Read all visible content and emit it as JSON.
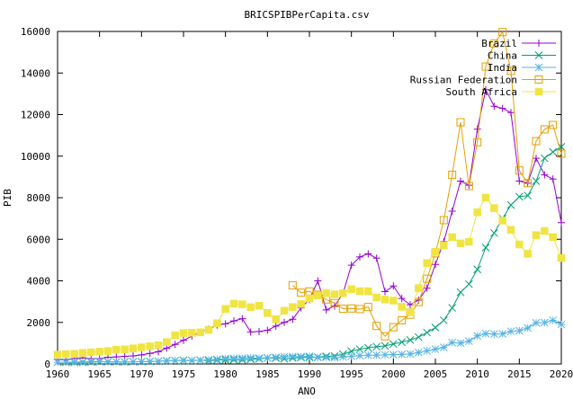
{
  "chart_data": {
    "type": "line",
    "title": "BRICSPIBPerCapita.csv",
    "xlabel": "ANO",
    "ylabel": "PIB",
    "xlim": [
      1960,
      2020
    ],
    "ylim": [
      0,
      16000
    ],
    "xticks": [
      1960,
      1965,
      1970,
      1975,
      1980,
      1985,
      1990,
      1995,
      2000,
      2005,
      2010,
      2015,
      2020
    ],
    "yticks": [
      0,
      2000,
      4000,
      6000,
      8000,
      10000,
      12000,
      14000,
      16000
    ],
    "grid": false,
    "legend_position": "top-right",
    "x": [
      1960,
      1961,
      1962,
      1963,
      1964,
      1965,
      1966,
      1967,
      1968,
      1969,
      1970,
      1971,
      1972,
      1973,
      1974,
      1975,
      1976,
      1977,
      1978,
      1979,
      1980,
      1981,
      1982,
      1983,
      1984,
      1985,
      1986,
      1987,
      1988,
      1989,
      1990,
      1991,
      1992,
      1993,
      1994,
      1995,
      1996,
      1997,
      1998,
      1999,
      2000,
      2001,
      2002,
      2003,
      2004,
      2005,
      2006,
      2007,
      2008,
      2009,
      2010,
      2011,
      2012,
      2013,
      2014,
      2015,
      2016,
      2017,
      2018,
      2019,
      2020
    ],
    "series": [
      {
        "name": "Brazil",
        "color": "#9400d3",
        "marker": "plus",
        "values": [
          210,
          205,
          260,
          290,
          260,
          260,
          320,
          340,
          370,
          390,
          440,
          510,
          590,
          760,
          940,
          1140,
          1340,
          1530,
          1670,
          1870,
          1930,
          2070,
          2180,
          1540,
          1560,
          1620,
          1820,
          2000,
          2150,
          2700,
          3100,
          4000,
          2600,
          2790,
          3400,
          4750,
          5150,
          5300,
          5090,
          3480,
          3750,
          3150,
          2850,
          3070,
          3650,
          4790,
          5880,
          7350,
          8800,
          8600,
          11300,
          13200,
          12400,
          12300,
          12100,
          8800,
          8700,
          9900,
          9100,
          8900,
          6800
        ]
      },
      {
        "name": "China",
        "color": "#009e73",
        "marker": "cross",
        "values": [
          90,
          75,
          70,
          75,
          85,
          100,
          105,
          95,
          90,
          100,
          110,
          120,
          130,
          155,
          160,
          180,
          165,
          185,
          155,
          185,
          195,
          200,
          200,
          225,
          250,
          290,
          280,
          250,
          285,
          310,
          320,
          330,
          370,
          380,
          470,
          610,
          710,
          780,
          830,
          870,
          960,
          1050,
          1150,
          1290,
          1510,
          1750,
          2100,
          2700,
          3450,
          3840,
          4550,
          5600,
          6300,
          7000,
          7650,
          8050,
          8100,
          8800,
          9900,
          10200,
          10450
        ]
      },
      {
        "name": "India",
        "color": "#56b4e9",
        "marker": "star",
        "values": [
          80,
          85,
          90,
          100,
          115,
          120,
          90,
          95,
          100,
          110,
          115,
          120,
          125,
          145,
          165,
          160,
          160,
          175,
          200,
          220,
          265,
          270,
          275,
          290,
          280,
          300,
          320,
          345,
          360,
          350,
          370,
          310,
          320,
          300,
          340,
          370,
          400,
          420,
          420,
          440,
          450,
          460,
          480,
          550,
          630,
          710,
          800,
          1030,
          1000,
          1100,
          1350,
          1460,
          1440,
          1450,
          1570,
          1600,
          1730,
          1980,
          1990,
          2100,
          1900
        ]
      },
      {
        "name": "Russian Federation",
        "color": "#e69f00",
        "marker": "square",
        "values": [
          null,
          null,
          null,
          null,
          null,
          null,
          null,
          null,
          null,
          null,
          null,
          null,
          null,
          null,
          null,
          null,
          null,
          null,
          null,
          null,
          null,
          null,
          null,
          null,
          null,
          null,
          null,
          null,
          3780,
          3430,
          3490,
          3330,
          3100,
          2930,
          2660,
          2670,
          2640,
          2740,
          1830,
          1330,
          1770,
          2100,
          2370,
          2980,
          4100,
          5320,
          6920,
          9100,
          11630,
          8560,
          10670,
          14310,
          15420,
          15970,
          14100,
          9310,
          8700,
          10720,
          11290,
          11500,
          10120
        ]
      },
      {
        "name": "South Africa",
        "color": "#f0e442",
        "marker": "filled-square",
        "values": [
          450,
          470,
          490,
          530,
          560,
          590,
          620,
          680,
          700,
          750,
          800,
          850,
          900,
          1050,
          1380,
          1490,
          1500,
          1520,
          1640,
          1960,
          2650,
          2900,
          2870,
          2730,
          2800,
          2450,
          2150,
          2560,
          2740,
          2880,
          3150,
          3300,
          3400,
          3350,
          3400,
          3600,
          3500,
          3500,
          3200,
          3100,
          3050,
          2750,
          2500,
          3650,
          4850,
          5400,
          5700,
          6100,
          5800,
          5880,
          7300,
          8000,
          7500,
          6900,
          6450,
          5750,
          5300,
          6200,
          6400,
          6100,
          5100
        ]
      }
    ]
  }
}
